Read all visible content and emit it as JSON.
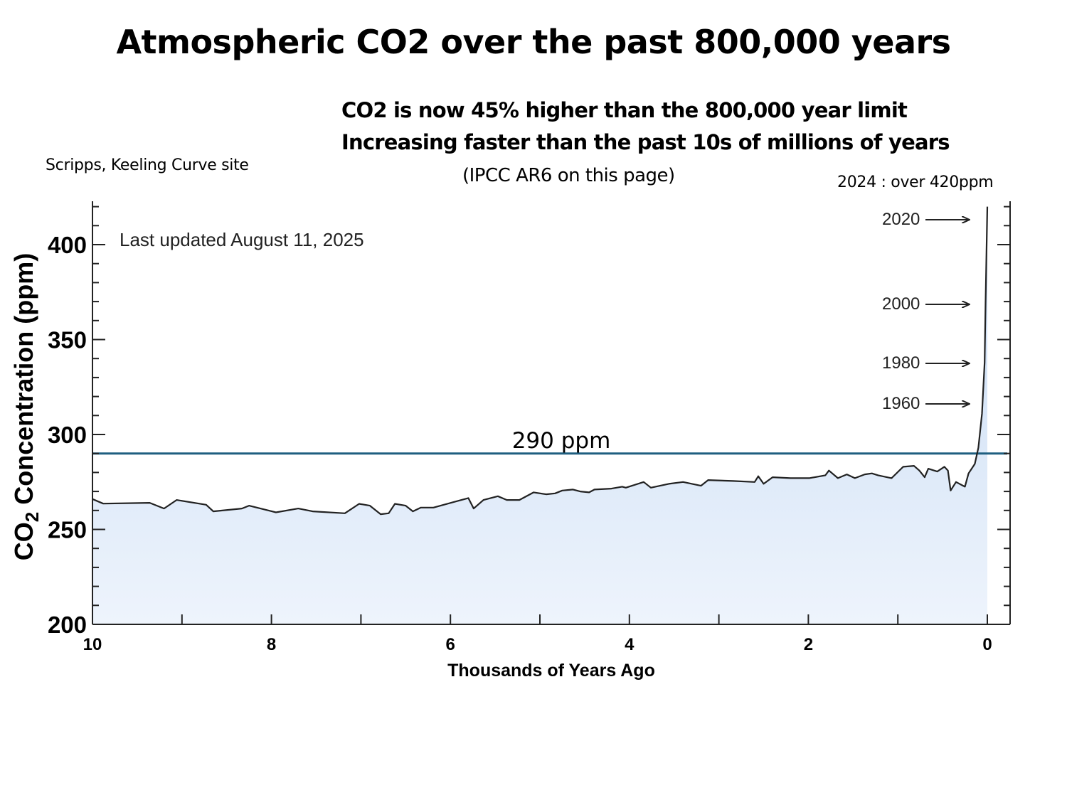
{
  "page": {
    "title": "Atmospheric CO2 over the past 800,000 years",
    "headline_1": "CO2 is now  45% higher than the 800,000 year limit",
    "headline_2": "Increasing faster than the past 10s of millions of years",
    "ipcc_note": "(IPCC AR6 on this page)",
    "source_note": "Scripps, Keeling Curve site",
    "current_note": "2024 : over 420ppm"
  },
  "colors": {
    "line": "#222222",
    "fill_top": "#c4d9f3",
    "fill_bottom": "#eef4fc",
    "reference_line": "#1f5f80",
    "axis": "#222222"
  },
  "chart_data": {
    "type": "area",
    "title": "",
    "xlabel": "Thousands of Years Ago",
    "ylabel_prefix": "CO",
    "ylabel_subscript": "2",
    "ylabel_suffix": " Concentration (ppm)",
    "xlim": [
      10,
      -0.25
    ],
    "ylim": [
      200,
      422
    ],
    "x_ticks": [
      10,
      8,
      6,
      4,
      2,
      0
    ],
    "x_tick_labels": [
      "10",
      "8",
      "6",
      "4",
      "2",
      "0"
    ],
    "x_minor_ticks": [
      9,
      7,
      5,
      3,
      1
    ],
    "y_ticks": [
      200,
      250,
      300,
      350,
      400
    ],
    "y_tick_labels": [
      "200",
      "250",
      "300",
      "350",
      "400"
    ],
    "y_minor_step": 10,
    "grid": false,
    "last_updated": "Last updated August 11, 2025",
    "reference_line": {
      "value": 290,
      "label": "290 ppm"
    },
    "annotations": [
      {
        "label": "2020",
        "ppm": 414
      },
      {
        "label": "2000",
        "ppm": 370
      },
      {
        "label": "1980",
        "ppm": 339
      },
      {
        "label": "1960",
        "ppm": 317
      }
    ],
    "series": [
      {
        "name": "CO2 concentration",
        "x": [
          10.0,
          9.88,
          9.36,
          9.2,
          9.06,
          8.73,
          8.65,
          8.33,
          8.25,
          7.95,
          7.7,
          7.54,
          7.18,
          7.02,
          6.9,
          6.78,
          6.69,
          6.62,
          6.5,
          6.42,
          6.33,
          6.19,
          5.8,
          5.74,
          5.63,
          5.47,
          5.37,
          5.23,
          5.07,
          4.93,
          4.83,
          4.75,
          4.63,
          4.55,
          4.45,
          4.39,
          4.2,
          4.08,
          4.04,
          3.84,
          3.76,
          3.56,
          3.4,
          3.2,
          3.12,
          2.84,
          2.6,
          2.56,
          2.5,
          2.4,
          2.2,
          1.99,
          1.81,
          1.77,
          1.67,
          1.57,
          1.48,
          1.37,
          1.29,
          1.22,
          1.07,
          0.94,
          0.82,
          0.76,
          0.7,
          0.66,
          0.56,
          0.48,
          0.44,
          0.41,
          0.35,
          0.27,
          0.25,
          0.21,
          0.14,
          0.1,
          0.06,
          0.03,
          0.02,
          0.0
        ],
        "values": [
          266,
          263.6,
          264,
          261,
          265.5,
          263,
          259.5,
          261,
          262.5,
          259,
          261,
          259.5,
          258.5,
          263.5,
          262.5,
          258,
          258.5,
          263.5,
          262.5,
          259.5,
          261.5,
          261.5,
          266.5,
          261,
          265.5,
          267.5,
          265.5,
          265.5,
          269.5,
          268.5,
          269,
          270.5,
          271,
          270,
          269.5,
          271,
          271.5,
          272.5,
          272,
          275,
          272,
          274,
          275,
          273,
          276,
          275.5,
          275,
          278,
          274,
          277.5,
          277,
          277,
          278.5,
          281,
          277,
          279,
          277,
          279,
          279.5,
          278.5,
          277,
          283,
          283.5,
          281,
          277.5,
          282,
          280.5,
          283,
          281,
          270.5,
          275,
          273,
          272.5,
          279.5,
          284.5,
          293,
          311,
          338,
          369,
          420
        ]
      }
    ]
  }
}
